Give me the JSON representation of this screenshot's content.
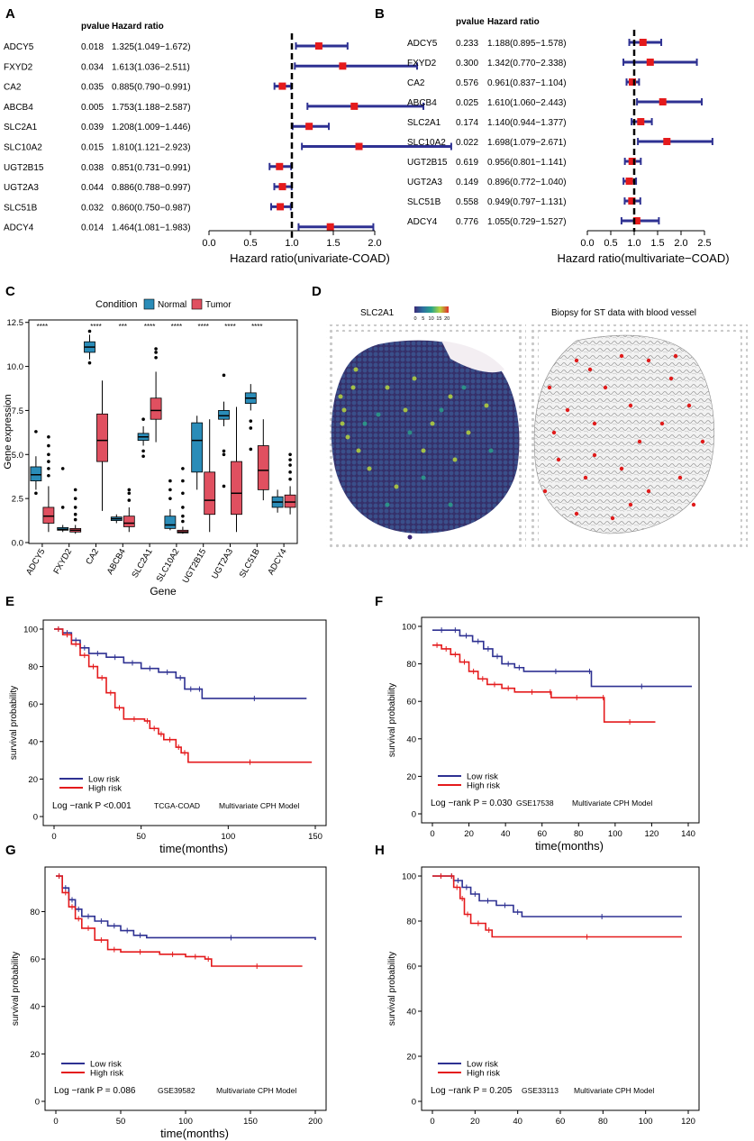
{
  "figure": {
    "panel_letters": [
      "A",
      "B",
      "C",
      "D",
      "E",
      "F",
      "G",
      "H"
    ]
  },
  "chart_data": [
    {
      "id": "A",
      "type": "forest",
      "header_pvalue": "pvalue",
      "header_hr": "Hazard ratio",
      "xlabel": "Hazard ratio(univariate-COAD)",
      "xlim": [
        0,
        2.5
      ],
      "xticks": [
        "0.0",
        "0.5",
        "1.0",
        "1.5",
        "2.0"
      ],
      "tick_values": [
        0,
        0.5,
        1,
        1.5,
        2
      ],
      "rows": [
        {
          "gene": "ADCY5",
          "p": "0.018",
          "hr_text": "1.325(1.049−1.672)",
          "hr": 1.325,
          "lo": 1.049,
          "hi": 1.672
        },
        {
          "gene": "FXYD2",
          "p": "0.034",
          "hr_text": "1.613(1.036−2.511)",
          "hr": 1.613,
          "lo": 1.036,
          "hi": 2.511
        },
        {
          "gene": "CA2",
          "p": "0.035",
          "hr_text": "0.885(0.790−0.991)",
          "hr": 0.885,
          "lo": 0.79,
          "hi": 0.991
        },
        {
          "gene": "ABCB4",
          "p": "0.005",
          "hr_text": "1.753(1.188−2.587)",
          "hr": 1.753,
          "lo": 1.188,
          "hi": 2.587
        },
        {
          "gene": "SLC2A1",
          "p": "0.039",
          "hr_text": "1.208(1.009−1.446)",
          "hr": 1.208,
          "lo": 1.009,
          "hi": 1.446
        },
        {
          "gene": "SLC10A2",
          "p": "0.015",
          "hr_text": "1.810(1.121−2.923)",
          "hr": 1.81,
          "lo": 1.121,
          "hi": 2.923
        },
        {
          "gene": "UGT2B15",
          "p": "0.038",
          "hr_text": "0.851(0.731−0.991)",
          "hr": 0.851,
          "lo": 0.731,
          "hi": 0.991
        },
        {
          "gene": "UGT2A3",
          "p": "0.044",
          "hr_text": "0.886(0.788−0.997)",
          "hr": 0.886,
          "lo": 0.788,
          "hi": 0.997
        },
        {
          "gene": "SLC51B",
          "p": "0.032",
          "hr_text": "0.860(0.750−0.987)",
          "hr": 0.86,
          "lo": 0.75,
          "hi": 0.987
        },
        {
          "gene": "ADCY4",
          "p": "0.014",
          "hr_text": "1.464(1.081−1.983)",
          "hr": 1.464,
          "lo": 1.081,
          "hi": 1.983
        }
      ]
    },
    {
      "id": "B",
      "type": "forest",
      "header_pvalue": "pvalue",
      "header_hr": "Hazard ratio",
      "xlabel": "Hazard ratio(multivariate−COAD)",
      "xlim": [
        0,
        2.5
      ],
      "xticks": [
        "0.0",
        "0.5",
        "1.0",
        "1.5",
        "2.0",
        "2.5"
      ],
      "tick_values": [
        0,
        0.5,
        1,
        1.5,
        2,
        2.5
      ],
      "rows": [
        {
          "gene": "ADCY5",
          "p": "0.233",
          "hr_text": "1.188(0.895−1.578)",
          "hr": 1.188,
          "lo": 0.895,
          "hi": 1.578
        },
        {
          "gene": "FXYD2",
          "p": "0.300",
          "hr_text": "1.342(0.770−2.338)",
          "hr": 1.342,
          "lo": 0.77,
          "hi": 2.338
        },
        {
          "gene": "CA2",
          "p": "0.576",
          "hr_text": "0.961(0.837−1.104)",
          "hr": 0.961,
          "lo": 0.837,
          "hi": 1.104
        },
        {
          "gene": "ABCB4",
          "p": "0.025",
          "hr_text": "1.610(1.060−2.443)",
          "hr": 1.61,
          "lo": 1.06,
          "hi": 2.443
        },
        {
          "gene": "SLC2A1",
          "p": "0.174",
          "hr_text": "1.140(0.944−1.377)",
          "hr": 1.14,
          "lo": 0.944,
          "hi": 1.377
        },
        {
          "gene": "SLC10A2",
          "p": "0.022",
          "hr_text": "1.698(1.079−2.671)",
          "hr": 1.698,
          "lo": 1.079,
          "hi": 2.671
        },
        {
          "gene": "UGT2B15",
          "p": "0.619",
          "hr_text": "0.956(0.801−1.141)",
          "hr": 0.956,
          "lo": 0.801,
          "hi": 1.141
        },
        {
          "gene": "UGT2A3",
          "p": "0.149",
          "hr_text": "0.896(0.772−1.040)",
          "hr": 0.896,
          "lo": 0.772,
          "hi": 1.04
        },
        {
          "gene": "SLC51B",
          "p": "0.558",
          "hr_text": "0.949(0.797−1.131)",
          "hr": 0.949,
          "lo": 0.797,
          "hi": 1.131
        },
        {
          "gene": "ADCY4",
          "p": "0.776",
          "hr_text": "1.055(0.729−1.527)",
          "hr": 1.055,
          "lo": 0.729,
          "hi": 1.527
        }
      ]
    },
    {
      "id": "C",
      "type": "box",
      "legend_title": "Condition",
      "legend": [
        "Normal",
        "Tumor"
      ],
      "colors": {
        "Normal": "#2a8cb8",
        "Tumor": "#e05060"
      },
      "xlabel": "Gene",
      "ylabel": "Gene expression",
      "ylim": [
        0,
        12.5
      ],
      "yticks": [
        "0.0",
        "2.5",
        "5.0",
        "7.5",
        "10.0",
        "12.5"
      ],
      "ytick_values": [
        0,
        2.5,
        5,
        7.5,
        10,
        12.5
      ],
      "genes": [
        "ADCY5",
        "FXYD2",
        "CA2",
        "ABCB4",
        "SLC2A1",
        "SLC10A2",
        "UGT2B15",
        "UGT2A3",
        "SLC51B",
        "ADCY4"
      ],
      "significance": [
        "****",
        "",
        "****",
        "***",
        "****",
        "****",
        "****",
        "****",
        "****",
        ""
      ],
      "normal": [
        {
          "min": 3.0,
          "q1": 3.5,
          "med": 3.85,
          "q3": 4.3,
          "max": 4.9,
          "out": [
            6.3,
            2.8
          ]
        },
        {
          "min": 0.6,
          "q1": 0.7,
          "med": 0.75,
          "q3": 0.85,
          "max": 1.0,
          "out": [
            4.2,
            2.0
          ]
        },
        {
          "min": 10.4,
          "q1": 10.8,
          "med": 11.1,
          "q3": 11.4,
          "max": 11.8,
          "out": [
            12.0,
            10.2
          ]
        },
        {
          "min": 1.1,
          "q1": 1.25,
          "med": 1.35,
          "q3": 1.45,
          "max": 1.6,
          "out": []
        },
        {
          "min": 5.5,
          "q1": 5.8,
          "med": 6.0,
          "q3": 6.2,
          "max": 6.6,
          "out": [
            7.0,
            5.2,
            4.9
          ]
        },
        {
          "min": 0.7,
          "q1": 0.8,
          "med": 1.0,
          "q3": 1.5,
          "max": 1.9,
          "out": [
            2.5,
            3.0,
            3.5
          ]
        },
        {
          "min": 3.0,
          "q1": 4.0,
          "med": 5.8,
          "q3": 6.8,
          "max": 7.2,
          "out": []
        },
        {
          "min": 6.6,
          "q1": 7.0,
          "med": 7.2,
          "q3": 7.5,
          "max": 8.0,
          "out": [
            9.5,
            5.2,
            5.0,
            3.2
          ]
        },
        {
          "min": 7.5,
          "q1": 7.9,
          "med": 8.2,
          "q3": 8.5,
          "max": 9.0,
          "out": [
            6.9,
            6.5,
            5.3
          ]
        },
        {
          "min": 1.7,
          "q1": 2.0,
          "med": 2.3,
          "q3": 2.6,
          "max": 3.0,
          "out": []
        }
      ],
      "tumor": [
        {
          "min": 0.6,
          "q1": 1.1,
          "med": 1.5,
          "q3": 2.0,
          "max": 3.2,
          "out": [
            3.8,
            4.2,
            4.6,
            5.0,
            5.5,
            6.0
          ]
        },
        {
          "min": 0.5,
          "q1": 0.6,
          "med": 0.7,
          "q3": 0.8,
          "max": 1.0,
          "out": [
            1.3,
            1.6,
            2.0,
            2.5,
            3.0
          ]
        },
        {
          "min": 1.8,
          "q1": 4.6,
          "med": 5.8,
          "q3": 7.3,
          "max": 9.2,
          "out": []
        },
        {
          "min": 0.6,
          "q1": 0.9,
          "med": 1.1,
          "q3": 1.5,
          "max": 2.0,
          "out": [
            2.4,
            2.8,
            3.0
          ]
        },
        {
          "min": 5.7,
          "q1": 7.0,
          "med": 7.5,
          "q3": 8.2,
          "max": 9.7,
          "out": [
            10.5,
            10.8,
            11.0
          ]
        },
        {
          "min": 0.5,
          "q1": 0.55,
          "med": 0.6,
          "q3": 0.7,
          "max": 0.9,
          "out": [
            1.2,
            1.5,
            2.0,
            2.8,
            3.5,
            4.2
          ]
        },
        {
          "min": 0.6,
          "q1": 1.6,
          "med": 2.4,
          "q3": 4.0,
          "max": 7.0,
          "out": []
        },
        {
          "min": 0.6,
          "q1": 1.6,
          "med": 2.8,
          "q3": 4.6,
          "max": 7.7,
          "out": []
        },
        {
          "min": 2.4,
          "q1": 3.0,
          "med": 4.1,
          "q3": 5.5,
          "max": 7.0,
          "out": []
        },
        {
          "min": 1.6,
          "q1": 2.0,
          "med": 2.3,
          "q3": 2.7,
          "max": 3.2,
          "out": [
            3.6,
            4.0,
            4.4,
            4.7,
            5.0
          ]
        }
      ]
    },
    {
      "id": "D",
      "type": "image-pair",
      "left_title": "SLC2A1",
      "colorbar_ticks": [
        "0",
        "5",
        "10",
        "15",
        "20"
      ],
      "right_title": "Biopsy for ST data with blood vessel"
    },
    {
      "id": "E",
      "type": "km",
      "xlabel": "time(months)",
      "ylabel": "survival probability",
      "xlim": [
        0,
        150
      ],
      "ylim": [
        0,
        100
      ],
      "xticks": [
        "0",
        "50",
        "100",
        "150"
      ],
      "xtick_values": [
        0,
        50,
        100,
        150
      ],
      "yticks": [
        "0",
        "20",
        "40",
        "60",
        "80",
        "100"
      ],
      "ytick_values": [
        0,
        20,
        40,
        60,
        80,
        100
      ],
      "legend": [
        "Low risk",
        "High risk"
      ],
      "annotation": {
        "logrank": "Log −rank P <0.001",
        "dataset": "TCGA-COAD",
        "model": "Multivariate CPH Model"
      },
      "low": [
        [
          0,
          100
        ],
        [
          5,
          98
        ],
        [
          10,
          94
        ],
        [
          15,
          90
        ],
        [
          20,
          87
        ],
        [
          30,
          85
        ],
        [
          40,
          82
        ],
        [
          50,
          79
        ],
        [
          60,
          77
        ],
        [
          70,
          74
        ],
        [
          75,
          68
        ],
        [
          82,
          68
        ],
        [
          85,
          63
        ],
        [
          145,
          63
        ]
      ],
      "high": [
        [
          0,
          100
        ],
        [
          5,
          97
        ],
        [
          10,
          92
        ],
        [
          15,
          86
        ],
        [
          20,
          80
        ],
        [
          25,
          74
        ],
        [
          30,
          66
        ],
        [
          35,
          58
        ],
        [
          40,
          52
        ],
        [
          52,
          51
        ],
        [
          55,
          47
        ],
        [
          60,
          44
        ],
        [
          63,
          41
        ],
        [
          70,
          37
        ],
        [
          73,
          34
        ],
        [
          77,
          29
        ],
        [
          148,
          29
        ]
      ]
    },
    {
      "id": "F",
      "type": "km",
      "xlabel": "time(months)",
      "ylabel": "survival probability",
      "xlim": [
        0,
        140
      ],
      "ylim": [
        0,
        100
      ],
      "xticks": [
        "0",
        "20",
        "40",
        "60",
        "80",
        "100",
        "120",
        "140"
      ],
      "xtick_values": [
        0,
        20,
        40,
        60,
        80,
        100,
        120,
        140
      ],
      "yticks": [
        "0",
        "20",
        "40",
        "60",
        "80",
        "100"
      ],
      "ytick_values": [
        0,
        20,
        40,
        60,
        80,
        100
      ],
      "legend": [
        "Low risk",
        "High risk"
      ],
      "annotation": {
        "logrank": "Log −rank P = 0.030",
        "dataset": "GSE17538",
        "model": "Multivariate CPH Model"
      },
      "low": [
        [
          0,
          98
        ],
        [
          10,
          98
        ],
        [
          15,
          95
        ],
        [
          22,
          92
        ],
        [
          28,
          88
        ],
        [
          33,
          84
        ],
        [
          38,
          80
        ],
        [
          45,
          78
        ],
        [
          50,
          76
        ],
        [
          85,
          76
        ],
        [
          87,
          68
        ],
        [
          142,
          68
        ]
      ],
      "high": [
        [
          0,
          90
        ],
        [
          5,
          88
        ],
        [
          10,
          85
        ],
        [
          15,
          81
        ],
        [
          20,
          76
        ],
        [
          25,
          72
        ],
        [
          30,
          69
        ],
        [
          38,
          67
        ],
        [
          45,
          65
        ],
        [
          64,
          65
        ],
        [
          65,
          62
        ],
        [
          93,
          62
        ],
        [
          94,
          49
        ],
        [
          122,
          49
        ]
      ]
    },
    {
      "id": "G",
      "type": "km",
      "xlabel": "time(months)",
      "ylabel": "survival probability",
      "xlim": [
        0,
        200
      ],
      "ylim": [
        0,
        95
      ],
      "xticks": [
        "0",
        "50",
        "100",
        "150",
        "200"
      ],
      "xtick_values": [
        0,
        50,
        100,
        150,
        200
      ],
      "yticks": [
        "0",
        "20",
        "40",
        "60",
        "80"
      ],
      "ytick_values": [
        0,
        20,
        40,
        60,
        80
      ],
      "legend": [
        "Low risk",
        "High risk"
      ],
      "annotation": {
        "logrank": "Log −rank P = 0.086",
        "dataset": "GSE39582",
        "model": "Multivariate CPH Model"
      },
      "low": [
        [
          0,
          95
        ],
        [
          5,
          90
        ],
        [
          10,
          85
        ],
        [
          15,
          81
        ],
        [
          20,
          78
        ],
        [
          30,
          76
        ],
        [
          40,
          74
        ],
        [
          50,
          72
        ],
        [
          60,
          70
        ],
        [
          70,
          69
        ],
        [
          200,
          68
        ]
      ],
      "high": [
        [
          0,
          95
        ],
        [
          5,
          88
        ],
        [
          10,
          82
        ],
        [
          15,
          77
        ],
        [
          20,
          73
        ],
        [
          30,
          68
        ],
        [
          40,
          64
        ],
        [
          50,
          63
        ],
        [
          80,
          62
        ],
        [
          100,
          61
        ],
        [
          115,
          60
        ],
        [
          120,
          57
        ],
        [
          190,
          57
        ]
      ]
    },
    {
      "id": "H",
      "type": "km",
      "xlabel": "",
      "ylabel": "survival probability",
      "xlim": [
        0,
        120
      ],
      "ylim": [
        0,
        100
      ],
      "xticks": [
        "0",
        "20",
        "40",
        "60",
        "80",
        "100",
        "120"
      ],
      "xtick_values": [
        0,
        20,
        40,
        60,
        80,
        100,
        120
      ],
      "yticks": [
        "0",
        "20",
        "40",
        "60",
        "80",
        "100"
      ],
      "ytick_values": [
        0,
        20,
        40,
        60,
        80,
        100
      ],
      "legend": [
        "Low risk",
        "High risk"
      ],
      "annotation": {
        "logrank": "Log −rank P = 0.205",
        "dataset": "GSE33113",
        "model": "Multivariate CPH Model"
      },
      "low": [
        [
          0,
          100
        ],
        [
          8,
          100
        ],
        [
          10,
          98
        ],
        [
          14,
          95
        ],
        [
          18,
          92
        ],
        [
          22,
          89
        ],
        [
          30,
          87
        ],
        [
          38,
          84
        ],
        [
          42,
          82
        ],
        [
          117,
          82
        ]
      ],
      "high": [
        [
          0,
          100
        ],
        [
          8,
          100
        ],
        [
          10,
          95
        ],
        [
          13,
          90
        ],
        [
          15,
          83
        ],
        [
          18,
          79
        ],
        [
          25,
          76
        ],
        [
          28,
          73
        ],
        [
          117,
          73
        ]
      ]
    }
  ]
}
